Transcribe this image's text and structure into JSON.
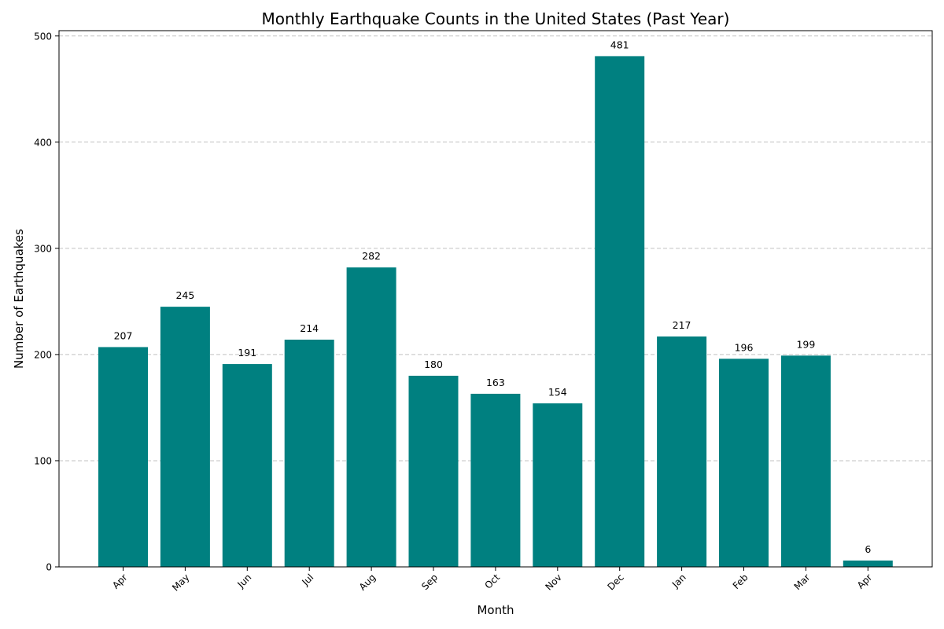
{
  "chart_data": {
    "type": "bar",
    "title": "Monthly Earthquake Counts in the United States (Past Year)",
    "xlabel": "Month",
    "ylabel": "Number of Earthquakes",
    "categories": [
      "Apr",
      "May",
      "Jun",
      "Jul",
      "Aug",
      "Sep",
      "Oct",
      "Nov",
      "Dec",
      "Jan",
      "Feb",
      "Mar",
      "Apr"
    ],
    "values": [
      207,
      245,
      191,
      214,
      282,
      180,
      163,
      154,
      481,
      217,
      196,
      199,
      6
    ],
    "ylim": [
      0,
      505
    ],
    "yticks": [
      0,
      100,
      200,
      300,
      400,
      500
    ],
    "grid": "y-dashed",
    "bar_color": "#008080",
    "legend": "none"
  }
}
